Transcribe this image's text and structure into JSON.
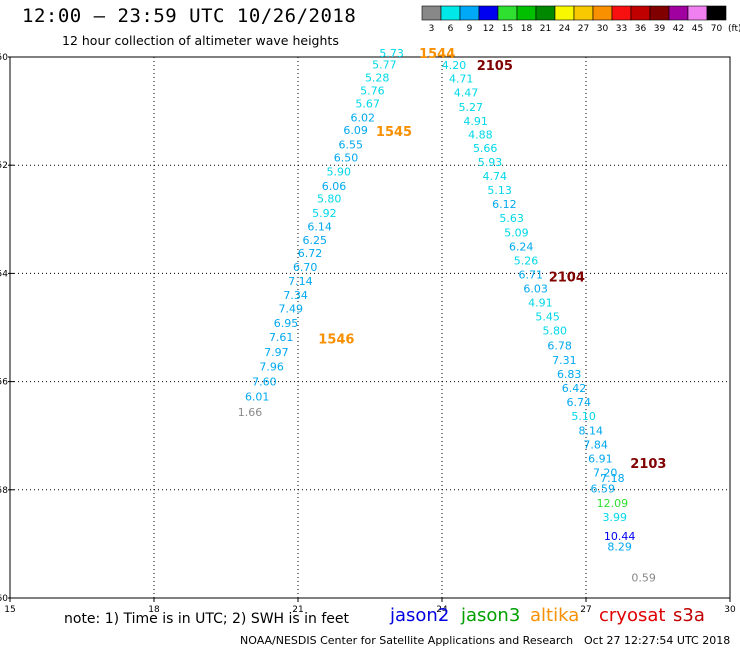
{
  "header": {
    "title": "12:00 – 23:59 UTC 10/26/2018",
    "subtitle": "12 hour collection of altimeter wave heights"
  },
  "color_scale": {
    "labels": [
      "3",
      "6",
      "9",
      "12",
      "15",
      "18",
      "21",
      "24",
      "27",
      "30",
      "33",
      "36",
      "39",
      "42",
      "45",
      "70"
    ],
    "colors": [
      "#888888",
      "#00e8e8",
      "#00a8f8",
      "#0000f0",
      "#30e030",
      "#00c000",
      "#008800",
      "#f8f800",
      "#f8c800",
      "#f89000",
      "#f81010",
      "#c00000",
      "#800000",
      "#a000a0",
      "#f080f0",
      "#000000"
    ],
    "unit": "(ft)"
  },
  "note": "note:  1) Time is in UTC;  2) SWH is in feet",
  "satellites": [
    {
      "name": "jason2",
      "color": "#0000e0"
    },
    {
      "name": "jason3",
      "color": "#00a000"
    },
    {
      "name": "altika",
      "color": "#f89000"
    },
    {
      "name": "cryosat",
      "color": "#e00000"
    },
    {
      "name": "s3a",
      "color": "#c00000"
    }
  ],
  "footer": {
    "credit": "NOAA/NESDIS Center for Satellite Applications and Research",
    "timestamp": "Oct 27 12:27:54 UTC 2018"
  },
  "chart_data": {
    "type": "scatter",
    "xlim": [
      15,
      30
    ],
    "ylim": [
      -60,
      -50
    ],
    "x_ticks": [
      "15",
      "18",
      "21",
      "24",
      "27",
      "30"
    ],
    "y_ticks": [
      "-50",
      "-52",
      "-54",
      "-56",
      "-58",
      "-60"
    ],
    "grid": true,
    "passes": [
      {
        "satellite": "altika",
        "times": [
          {
            "label": "1544",
            "x": 23.9,
            "y": -49.93
          },
          {
            "label": "1545",
            "x": 23.0,
            "y": -51.37
          },
          {
            "label": "1546",
            "x": 21.8,
            "y": -55.2
          }
        ],
        "points": [
          {
            "x": 22.95,
            "y": -49.93,
            "value": "5.73",
            "color": "#00d8e8"
          },
          {
            "x": 22.8,
            "y": -50.14,
            "value": "5.77",
            "color": "#00d8e8"
          },
          {
            "x": 22.65,
            "y": -50.38,
            "value": "5.28",
            "color": "#00d8e8"
          },
          {
            "x": 22.55,
            "y": -50.62,
            "value": "5.76",
            "color": "#00d8e8"
          },
          {
            "x": 22.45,
            "y": -50.86,
            "value": "5.67",
            "color": "#00d8e8"
          },
          {
            "x": 22.35,
            "y": -51.12,
            "value": "6.02",
            "color": "#00a8f0"
          },
          {
            "x": 22.2,
            "y": -51.35,
            "value": "6.09",
            "color": "#00a8f0"
          },
          {
            "x": 22.1,
            "y": -51.62,
            "value": "6.55",
            "color": "#00a8f0"
          },
          {
            "x": 22.0,
            "y": -51.86,
            "value": "6.50",
            "color": "#00a8f0"
          },
          {
            "x": 21.85,
            "y": -52.12,
            "value": "5.90",
            "color": "#00d8e8"
          },
          {
            "x": 21.75,
            "y": -52.38,
            "value": "6.06",
            "color": "#00a8f0"
          },
          {
            "x": 21.65,
            "y": -52.62,
            "value": "5.80",
            "color": "#00d8e8"
          },
          {
            "x": 21.55,
            "y": -52.88,
            "value": "5.92",
            "color": "#00d8e8"
          },
          {
            "x": 21.45,
            "y": -53.13,
            "value": "6.14",
            "color": "#00a8f0"
          },
          {
            "x": 21.35,
            "y": -53.38,
            "value": "6.25",
            "color": "#00a8f0"
          },
          {
            "x": 21.25,
            "y": -53.62,
            "value": "6.72",
            "color": "#00a8f0"
          },
          {
            "x": 21.15,
            "y": -53.88,
            "value": "6.70",
            "color": "#00a8f0"
          },
          {
            "x": 21.05,
            "y": -54.14,
            "value": "7.14",
            "color": "#00a8f0"
          },
          {
            "x": 20.95,
            "y": -54.4,
            "value": "7.34",
            "color": "#00a8f0"
          },
          {
            "x": 20.85,
            "y": -54.65,
            "value": "7.49",
            "color": "#00a8f0"
          },
          {
            "x": 20.75,
            "y": -54.92,
            "value": "6.95",
            "color": "#00a8f0"
          },
          {
            "x": 20.65,
            "y": -55.18,
            "value": "7.61",
            "color": "#00a8f0"
          },
          {
            "x": 20.55,
            "y": -55.45,
            "value": "7.97",
            "color": "#00a8f0"
          },
          {
            "x": 20.45,
            "y": -55.72,
            "value": "7.96",
            "color": "#00a8f0"
          },
          {
            "x": 20.3,
            "y": -56.0,
            "value": "7.60",
            "color": "#00a8f0"
          },
          {
            "x": 20.15,
            "y": -56.28,
            "value": "6.01",
            "color": "#00a8f0"
          },
          {
            "x": 20.0,
            "y": -56.56,
            "value": "1.66",
            "color": "#888888"
          }
        ]
      },
      {
        "satellite": "s3a",
        "times": [
          {
            "label": "2105",
            "x": 25.1,
            "y": -50.15
          },
          {
            "label": "2104",
            "x": 26.6,
            "y": -54.06
          },
          {
            "label": "2103",
            "x": 28.3,
            "y": -57.5
          }
        ],
        "points": [
          {
            "x": 24.25,
            "y": -50.15,
            "value": "4.20",
            "color": "#00d8e8"
          },
          {
            "x": 24.4,
            "y": -50.4,
            "value": "4.71",
            "color": "#00d8e8"
          },
          {
            "x": 24.5,
            "y": -50.66,
            "value": "4.47",
            "color": "#00d8e8"
          },
          {
            "x": 24.6,
            "y": -50.92,
            "value": "5.27",
            "color": "#00d8e8"
          },
          {
            "x": 24.7,
            "y": -51.18,
            "value": "4.91",
            "color": "#00d8e8"
          },
          {
            "x": 24.8,
            "y": -51.43,
            "value": "4.88",
            "color": "#00d8e8"
          },
          {
            "x": 24.9,
            "y": -51.68,
            "value": "5.66",
            "color": "#00d8e8"
          },
          {
            "x": 25.0,
            "y": -51.94,
            "value": "5.93",
            "color": "#00d8e8"
          },
          {
            "x": 25.1,
            "y": -52.2,
            "value": "4.74",
            "color": "#00d8e8"
          },
          {
            "x": 25.2,
            "y": -52.46,
            "value": "5.13",
            "color": "#00d8e8"
          },
          {
            "x": 25.3,
            "y": -52.72,
            "value": "6.12",
            "color": "#00a8f0"
          },
          {
            "x": 25.45,
            "y": -52.98,
            "value": "5.63",
            "color": "#00d8e8"
          },
          {
            "x": 25.55,
            "y": -53.24,
            "value": "5.09",
            "color": "#00d8e8"
          },
          {
            "x": 25.65,
            "y": -53.5,
            "value": "6.24",
            "color": "#00a8f0"
          },
          {
            "x": 25.75,
            "y": -53.76,
            "value": "5.26",
            "color": "#00d8e8"
          },
          {
            "x": 25.85,
            "y": -54.02,
            "value": "6.71",
            "color": "#00a8f0"
          },
          {
            "x": 25.95,
            "y": -54.28,
            "value": "6.03",
            "color": "#00a8f0"
          },
          {
            "x": 26.05,
            "y": -54.54,
            "value": "4.91",
            "color": "#00d8e8"
          },
          {
            "x": 26.2,
            "y": -54.8,
            "value": "5.45",
            "color": "#00d8e8"
          },
          {
            "x": 26.35,
            "y": -55.06,
            "value": "5.80",
            "color": "#00d8e8"
          },
          {
            "x": 26.45,
            "y": -55.33,
            "value": "6.78",
            "color": "#00a8f0"
          },
          {
            "x": 26.55,
            "y": -55.6,
            "value": "7.31",
            "color": "#00a8f0"
          },
          {
            "x": 26.65,
            "y": -55.86,
            "value": "6.83",
            "color": "#00a8f0"
          },
          {
            "x": 26.75,
            "y": -56.12,
            "value": "6.42",
            "color": "#00a8f0"
          },
          {
            "x": 26.85,
            "y": -56.38,
            "value": "6.74",
            "color": "#00a8f0"
          },
          {
            "x": 26.95,
            "y": -56.64,
            "value": "5.10",
            "color": "#00d8e8"
          },
          {
            "x": 27.1,
            "y": -56.9,
            "value": "8.14",
            "color": "#00a8f0"
          },
          {
            "x": 27.2,
            "y": -57.16,
            "value": "7.84",
            "color": "#00a8f0"
          },
          {
            "x": 27.3,
            "y": -57.42,
            "value": "6.91",
            "color": "#00a8f0"
          },
          {
            "x": 27.4,
            "y": -57.68,
            "value": "7.20",
            "color": "#00a8f0"
          },
          {
            "x": 27.55,
            "y": -57.78,
            "value": "7.18",
            "color": "#00a8f0"
          },
          {
            "x": 27.35,
            "y": -57.98,
            "value": "6.59",
            "color": "#00a8f0"
          },
          {
            "x": 27.55,
            "y": -58.24,
            "value": "12.09",
            "color": "#30e030"
          },
          {
            "x": 27.6,
            "y": -58.5,
            "value": "3.99",
            "color": "#00d8e8"
          },
          {
            "x": 27.7,
            "y": -58.85,
            "value": "10.44",
            "color": "#0000f0"
          },
          {
            "x": 27.7,
            "y": -59.05,
            "value": "8.29",
            "color": "#00a8f0"
          },
          {
            "x": 28.2,
            "y": -59.62,
            "value": "0.59",
            "color": "#888888"
          }
        ]
      }
    ],
    "time_label_colors": {
      "altika": "#f89000",
      "s3a": "#800000"
    }
  }
}
